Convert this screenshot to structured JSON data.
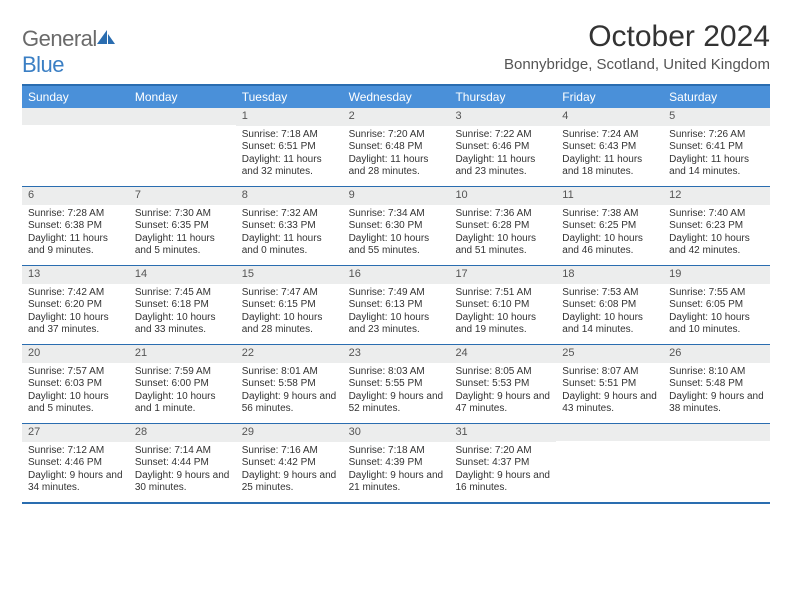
{
  "brand": {
    "text1": "General",
    "text2": "Blue"
  },
  "title": "October 2024",
  "location": "Bonnybridge, Scotland, United Kingdom",
  "colors": {
    "header_bg": "#4a90d9",
    "border": "#2a6db0",
    "daynum_bg": "#eceded",
    "text": "#333333"
  },
  "weekdays": [
    "Sunday",
    "Monday",
    "Tuesday",
    "Wednesday",
    "Thursday",
    "Friday",
    "Saturday"
  ],
  "weeks": [
    [
      null,
      null,
      {
        "n": "1",
        "sr": "7:18 AM",
        "ss": "6:51 PM",
        "dl": "11 hours and 32 minutes."
      },
      {
        "n": "2",
        "sr": "7:20 AM",
        "ss": "6:48 PM",
        "dl": "11 hours and 28 minutes."
      },
      {
        "n": "3",
        "sr": "7:22 AM",
        "ss": "6:46 PM",
        "dl": "11 hours and 23 minutes."
      },
      {
        "n": "4",
        "sr": "7:24 AM",
        "ss": "6:43 PM",
        "dl": "11 hours and 18 minutes."
      },
      {
        "n": "5",
        "sr": "7:26 AM",
        "ss": "6:41 PM",
        "dl": "11 hours and 14 minutes."
      }
    ],
    [
      {
        "n": "6",
        "sr": "7:28 AM",
        "ss": "6:38 PM",
        "dl": "11 hours and 9 minutes."
      },
      {
        "n": "7",
        "sr": "7:30 AM",
        "ss": "6:35 PM",
        "dl": "11 hours and 5 minutes."
      },
      {
        "n": "8",
        "sr": "7:32 AM",
        "ss": "6:33 PM",
        "dl": "11 hours and 0 minutes."
      },
      {
        "n": "9",
        "sr": "7:34 AM",
        "ss": "6:30 PM",
        "dl": "10 hours and 55 minutes."
      },
      {
        "n": "10",
        "sr": "7:36 AM",
        "ss": "6:28 PM",
        "dl": "10 hours and 51 minutes."
      },
      {
        "n": "11",
        "sr": "7:38 AM",
        "ss": "6:25 PM",
        "dl": "10 hours and 46 minutes."
      },
      {
        "n": "12",
        "sr": "7:40 AM",
        "ss": "6:23 PM",
        "dl": "10 hours and 42 minutes."
      }
    ],
    [
      {
        "n": "13",
        "sr": "7:42 AM",
        "ss": "6:20 PM",
        "dl": "10 hours and 37 minutes."
      },
      {
        "n": "14",
        "sr": "7:45 AM",
        "ss": "6:18 PM",
        "dl": "10 hours and 33 minutes."
      },
      {
        "n": "15",
        "sr": "7:47 AM",
        "ss": "6:15 PM",
        "dl": "10 hours and 28 minutes."
      },
      {
        "n": "16",
        "sr": "7:49 AM",
        "ss": "6:13 PM",
        "dl": "10 hours and 23 minutes."
      },
      {
        "n": "17",
        "sr": "7:51 AM",
        "ss": "6:10 PM",
        "dl": "10 hours and 19 minutes."
      },
      {
        "n": "18",
        "sr": "7:53 AM",
        "ss": "6:08 PM",
        "dl": "10 hours and 14 minutes."
      },
      {
        "n": "19",
        "sr": "7:55 AM",
        "ss": "6:05 PM",
        "dl": "10 hours and 10 minutes."
      }
    ],
    [
      {
        "n": "20",
        "sr": "7:57 AM",
        "ss": "6:03 PM",
        "dl": "10 hours and 5 minutes."
      },
      {
        "n": "21",
        "sr": "7:59 AM",
        "ss": "6:00 PM",
        "dl": "10 hours and 1 minute."
      },
      {
        "n": "22",
        "sr": "8:01 AM",
        "ss": "5:58 PM",
        "dl": "9 hours and 56 minutes."
      },
      {
        "n": "23",
        "sr": "8:03 AM",
        "ss": "5:55 PM",
        "dl": "9 hours and 52 minutes."
      },
      {
        "n": "24",
        "sr": "8:05 AM",
        "ss": "5:53 PM",
        "dl": "9 hours and 47 minutes."
      },
      {
        "n": "25",
        "sr": "8:07 AM",
        "ss": "5:51 PM",
        "dl": "9 hours and 43 minutes."
      },
      {
        "n": "26",
        "sr": "8:10 AM",
        "ss": "5:48 PM",
        "dl": "9 hours and 38 minutes."
      }
    ],
    [
      {
        "n": "27",
        "sr": "7:12 AM",
        "ss": "4:46 PM",
        "dl": "9 hours and 34 minutes."
      },
      {
        "n": "28",
        "sr": "7:14 AM",
        "ss": "4:44 PM",
        "dl": "9 hours and 30 minutes."
      },
      {
        "n": "29",
        "sr": "7:16 AM",
        "ss": "4:42 PM",
        "dl": "9 hours and 25 minutes."
      },
      {
        "n": "30",
        "sr": "7:18 AM",
        "ss": "4:39 PM",
        "dl": "9 hours and 21 minutes."
      },
      {
        "n": "31",
        "sr": "7:20 AM",
        "ss": "4:37 PM",
        "dl": "9 hours and 16 minutes."
      },
      null,
      null
    ]
  ],
  "labels": {
    "sunrise": "Sunrise:",
    "sunset": "Sunset:",
    "daylight": "Daylight:"
  }
}
